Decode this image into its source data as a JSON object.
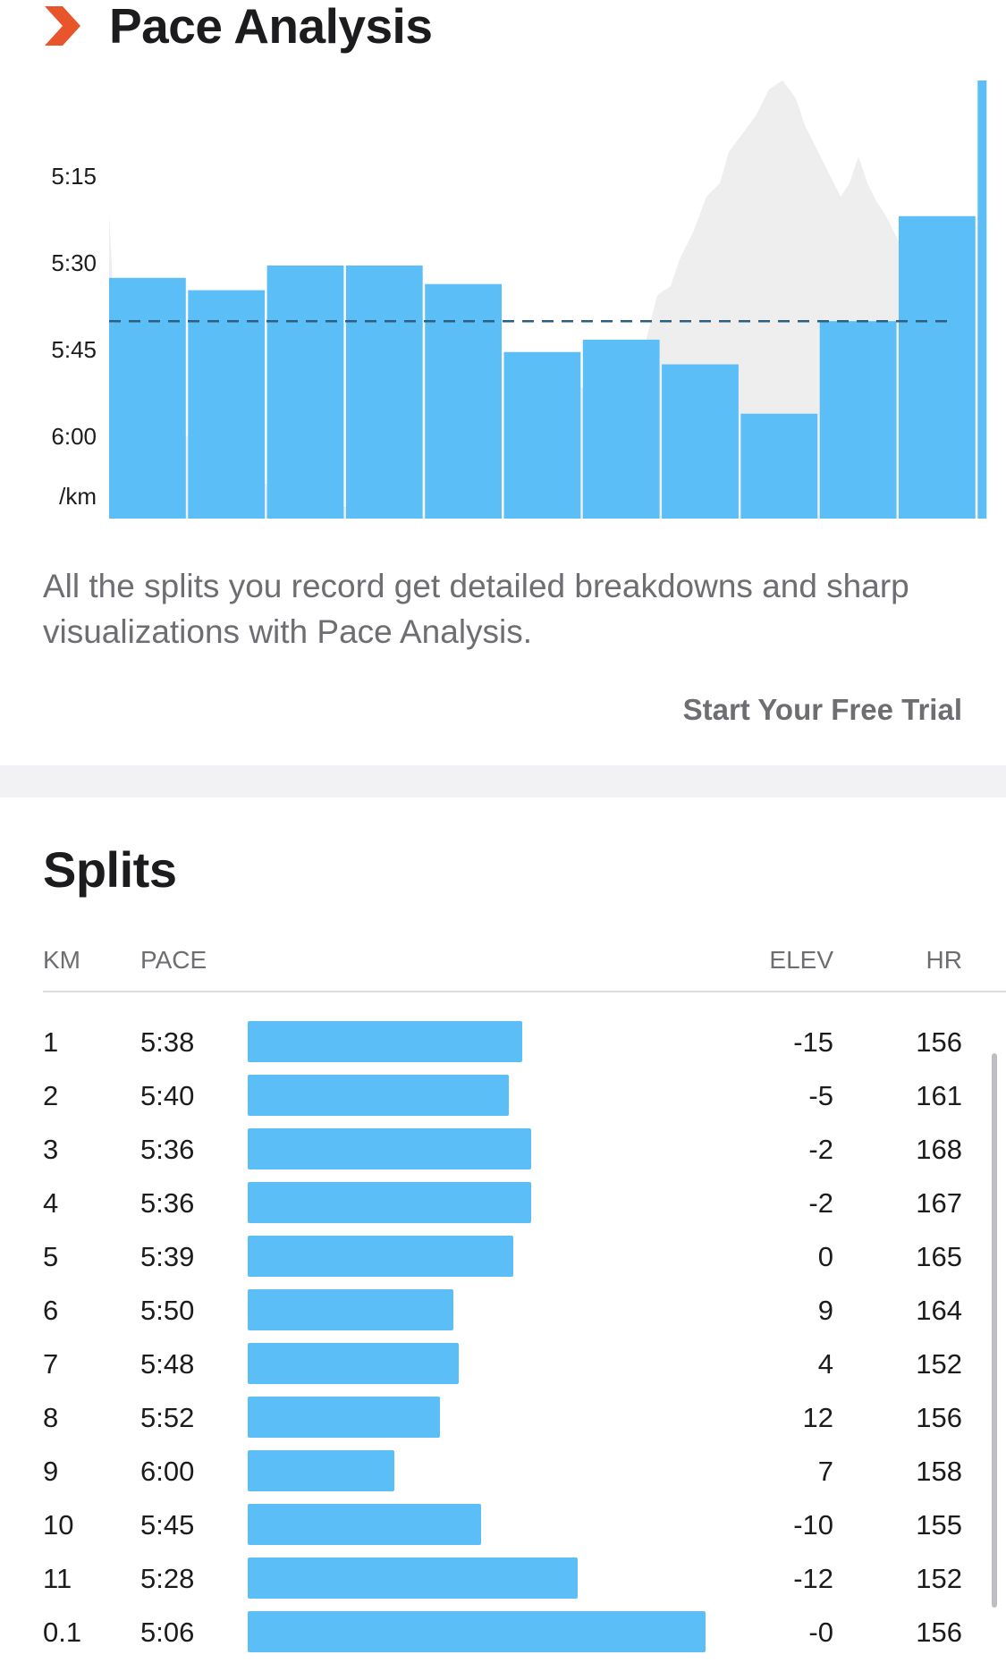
{
  "header": {
    "title": "Pace Analysis",
    "icon": "chevron-right-icon",
    "icon_color": "#e8552a"
  },
  "chart_data": {
    "type": "bar",
    "y_tick_labels": [
      "5:15",
      "5:30",
      "5:45",
      "6:00",
      "/km"
    ],
    "ylim_seconds": [
      306,
      377
    ],
    "reference_line_seconds": 345,
    "bar_color": "#5bbef7",
    "elevation_fill": "#eeeeef",
    "reference_color": "#2c5f80",
    "categories": [
      "1",
      "2",
      "3",
      "4",
      "5",
      "6",
      "7",
      "8",
      "9",
      "10",
      "11",
      "0.1"
    ],
    "values_seconds": [
      338,
      340,
      336,
      336,
      339,
      350,
      348,
      352,
      360,
      345,
      328,
      306
    ]
  },
  "description": "All the splits you record get detailed breakdowns and sharp visualizations with Pace Analysis.",
  "cta_label": "Start Your Free Trial",
  "splits": {
    "title": "Splits",
    "columns": {
      "km": "KM",
      "pace": "PACE",
      "elev": "ELEV",
      "hr": "HR"
    },
    "bar_color": "#5bbef7",
    "rows": [
      {
        "km": "1",
        "pace": "5:38",
        "elev": "-15",
        "hr": "156",
        "bar_fraction": 0.6
      },
      {
        "km": "2",
        "pace": "5:40",
        "elev": "-5",
        "hr": "161",
        "bar_fraction": 0.57
      },
      {
        "km": "3",
        "pace": "5:36",
        "elev": "-2",
        "hr": "168",
        "bar_fraction": 0.62
      },
      {
        "km": "4",
        "pace": "5:36",
        "elev": "-2",
        "hr": "167",
        "bar_fraction": 0.62
      },
      {
        "km": "5",
        "pace": "5:39",
        "elev": "0",
        "hr": "165",
        "bar_fraction": 0.58
      },
      {
        "km": "6",
        "pace": "5:50",
        "elev": "9",
        "hr": "164",
        "bar_fraction": 0.45
      },
      {
        "km": "7",
        "pace": "5:48",
        "elev": "4",
        "hr": "152",
        "bar_fraction": 0.46
      },
      {
        "km": "8",
        "pace": "5:52",
        "elev": "12",
        "hr": "156",
        "bar_fraction": 0.42
      },
      {
        "km": "9",
        "pace": "6:00",
        "elev": "7",
        "hr": "158",
        "bar_fraction": 0.32
      },
      {
        "km": "10",
        "pace": "5:45",
        "elev": "-10",
        "hr": "155",
        "bar_fraction": 0.51
      },
      {
        "km": "11",
        "pace": "5:28",
        "elev": "-12",
        "hr": "152",
        "bar_fraction": 0.72
      },
      {
        "km": "0.1",
        "pace": "5:06",
        "elev": "-0",
        "hr": "156",
        "bar_fraction": 1.0
      }
    ]
  }
}
